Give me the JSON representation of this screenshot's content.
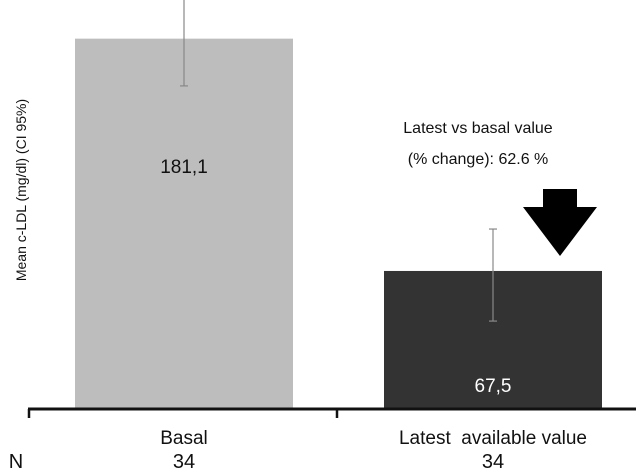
{
  "chart_data": {
    "type": "bar",
    "ylabel": "Mean c-LDL (mg/dl) (CI 95%)",
    "ylim": [
      0,
      200
    ],
    "grid": false,
    "categories": [
      "Basal",
      "Latest  available value"
    ],
    "values": [
      181.1,
      67.5
    ],
    "value_labels": [
      "181,1",
      "67,5"
    ],
    "error_bars": [
      {
        "low": 158,
        "high": 205
      },
      {
        "low": 43,
        "high": 88
      }
    ],
    "n_label": "N",
    "n_values": [
      "34",
      "34"
    ],
    "bar_colors": [
      "#bdbdbd",
      "#333333"
    ],
    "value_label_colors": [
      "#111111",
      "#ffffff"
    ],
    "annotation": {
      "line1": "Latest vs basal value",
      "line2": "(% change): 62.6 %"
    },
    "arrow": "down-arrow"
  }
}
